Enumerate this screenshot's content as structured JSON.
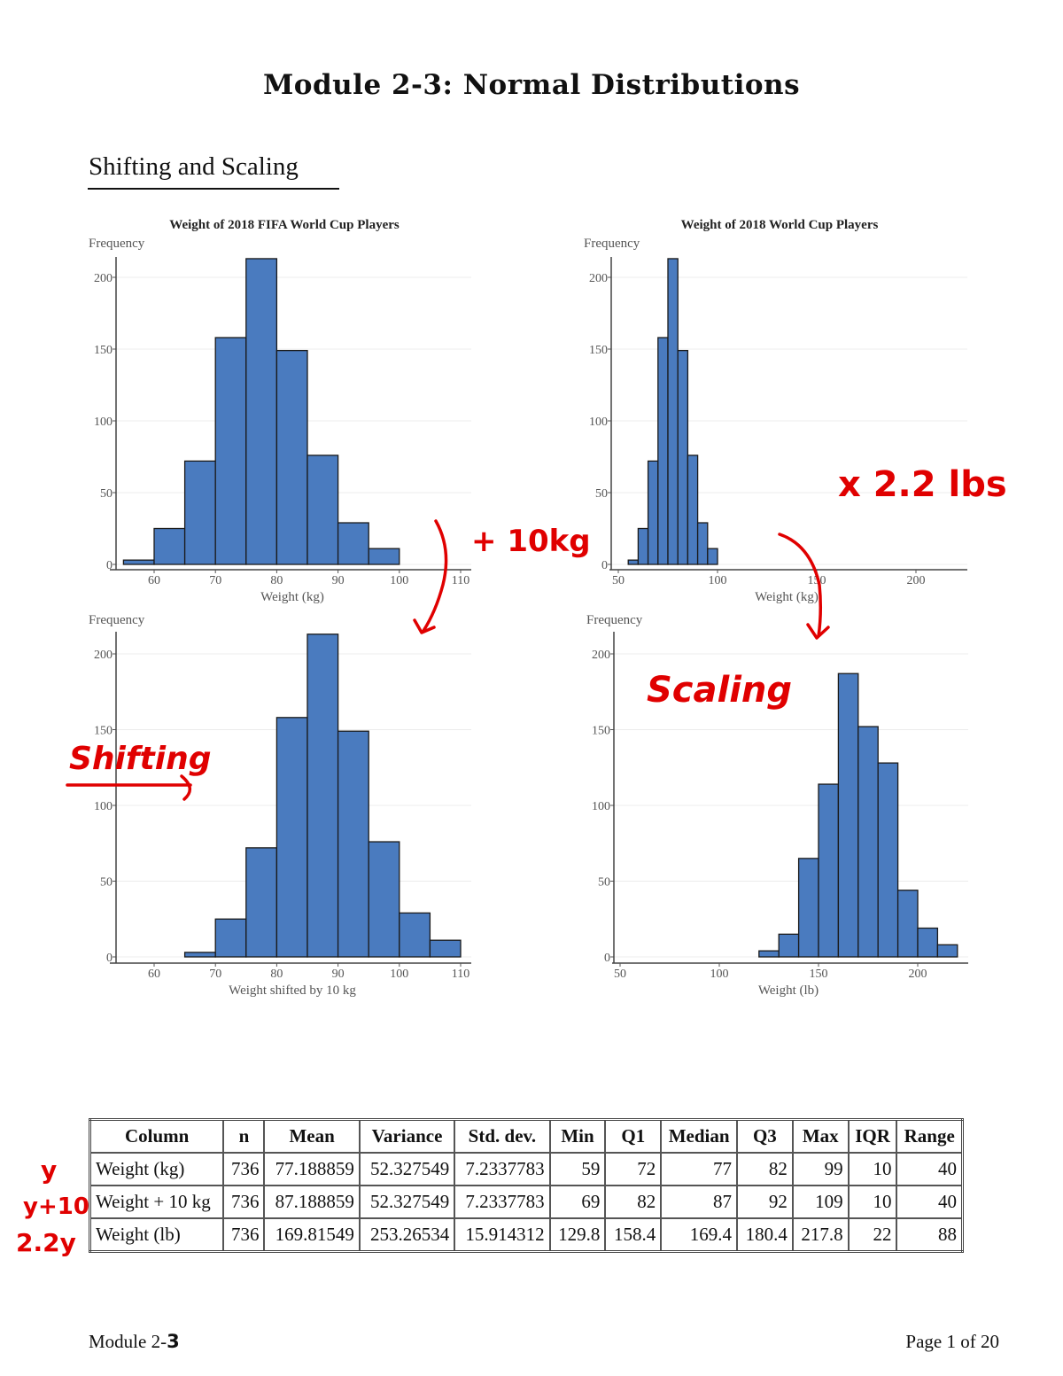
{
  "title": "Module 2-3: Normal Distributions",
  "section": "Shifting and Scaling",
  "chart_data": [
    {
      "type": "bar",
      "title": "Weight of 2018 FIFA World Cup Players",
      "ylabel": "Frequency",
      "xlabel": "Weight (kg)",
      "bin_edges": [
        55,
        60,
        65,
        70,
        75,
        80,
        85,
        90,
        95,
        100
      ],
      "values": [
        3,
        25,
        72,
        158,
        213,
        149,
        76,
        29,
        11
      ],
      "xticks": [
        60,
        70,
        80,
        90,
        100,
        110
      ],
      "yticks": [
        0,
        50,
        100,
        150,
        200
      ],
      "xlim": [
        54,
        113
      ],
      "ylim": [
        0,
        215
      ],
      "grid": true,
      "color": "#4a7bbf"
    },
    {
      "type": "bar",
      "title": "Weight of 2018 World Cup Players",
      "ylabel": "Frequency",
      "xlabel": "Weight (kg)",
      "bin_edges": [
        55,
        60,
        65,
        70,
        75,
        80,
        85,
        90,
        95,
        100
      ],
      "values": [
        3,
        25,
        72,
        158,
        213,
        149,
        76,
        29,
        11
      ],
      "xticks": [
        50,
        100,
        150,
        200
      ],
      "yticks": [
        0,
        50,
        100,
        150,
        200
      ],
      "xlim": [
        46,
        226
      ],
      "ylim": [
        0,
        215
      ],
      "grid": true,
      "color": "#4a7bbf"
    },
    {
      "type": "bar",
      "title": "",
      "ylabel": "Frequency",
      "xlabel": "Weight shifted by 10 kg",
      "bin_edges": [
        65,
        70,
        75,
        80,
        85,
        90,
        95,
        100,
        105,
        110
      ],
      "values": [
        3,
        25,
        72,
        158,
        213,
        149,
        76,
        29,
        11
      ],
      "xticks": [
        60,
        70,
        80,
        90,
        100,
        110
      ],
      "yticks": [
        0,
        50,
        100,
        150,
        200
      ],
      "xlim": [
        54,
        113
      ],
      "ylim": [
        0,
        215
      ],
      "grid": true,
      "color": "#4a7bbf"
    },
    {
      "type": "bar",
      "title": "",
      "ylabel": "Frequency",
      "xlabel": "Weight (lb)",
      "bin_edges": [
        120,
        130,
        140,
        150,
        160,
        170,
        180,
        190,
        200,
        210,
        220
      ],
      "values": [
        4,
        15,
        65,
        114,
        187,
        152,
        128,
        44,
        19,
        8
      ],
      "xticks": [
        50,
        100,
        150,
        200
      ],
      "yticks": [
        0,
        50,
        100,
        150,
        200
      ],
      "xlim": [
        47,
        226
      ],
      "ylim": [
        0,
        215
      ],
      "grid": true,
      "color": "#4a7bbf"
    }
  ],
  "annotations": {
    "plus10": "+ 10kg",
    "times22": "x 2.2 lbs",
    "shifting": "Shifting",
    "scaling": "Scaling",
    "row_y": "y",
    "row_y10": "y+10",
    "row_22y": "2.2y",
    "color": "#e00000"
  },
  "table": {
    "headers": [
      "Column",
      "n",
      "Mean",
      "Variance",
      "Std. dev.",
      "Min",
      "Q1",
      "Median",
      "Q3",
      "Max",
      "IQR",
      "Range"
    ],
    "rows": [
      [
        "Weight (kg)",
        "736",
        "77.188859",
        "52.327549",
        "7.2337783",
        "59",
        "72",
        "77",
        "82",
        "99",
        "10",
        "40"
      ],
      [
        "Weight + 10 kg",
        "736",
        "87.188859",
        "52.327549",
        "7.2337783",
        "69",
        "82",
        "87",
        "92",
        "109",
        "10",
        "40"
      ],
      [
        "Weight (lb)",
        "736",
        "169.81549",
        "253.26534",
        "15.914312",
        "129.8",
        "158.4",
        "169.4",
        "180.4",
        "217.8",
        "22",
        "88"
      ]
    ]
  },
  "footer": {
    "left": "Module 2-",
    "left_hand": "3",
    "right": "Page 1 of 20"
  }
}
